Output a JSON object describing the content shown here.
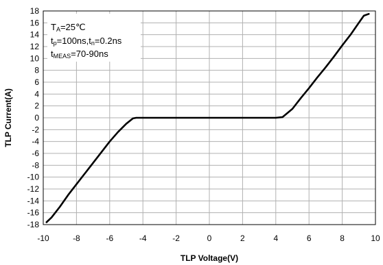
{
  "chart_data": {
    "type": "line",
    "xlabel": "TLP Voltage(V)",
    "ylabel": "TLP  Current(A)",
    "xlim": [
      -10,
      10
    ],
    "ylim": [
      -18,
      18
    ],
    "x_ticks": [
      -10,
      -8,
      -6,
      -4,
      -2,
      0,
      2,
      4,
      6,
      8,
      10
    ],
    "y_ticks": [
      18,
      16,
      14,
      12,
      10,
      8,
      6,
      4,
      2,
      0,
      -2,
      -4,
      -6,
      -8,
      -10,
      -12,
      -14,
      -16,
      -18
    ],
    "grid": true,
    "annotation": {
      "line1": {
        "main": "T",
        "sub": "A",
        "rest": "=25℃"
      },
      "line2": {
        "main1": "t",
        "sub1": "p",
        "rest1": "=100ns,t",
        "sub2": "n",
        "rest2": "=0.2ns"
      },
      "line3": {
        "main": "t",
        "sub": "MEAS",
        "rest": "=70-90ns"
      }
    },
    "series": [
      {
        "color": "#000000",
        "x": [
          -9.8,
          -9.5,
          -9.0,
          -8.5,
          -8.0,
          -7.5,
          -7.0,
          -6.5,
          -6.0,
          -5.5,
          -5.0,
          -4.6,
          -4.4,
          -4.0,
          -2.0,
          0.0,
          2.0,
          4.0,
          4.4,
          5.0,
          5.5,
          6.0,
          6.5,
          7.0,
          7.5,
          8.0,
          8.5,
          9.0,
          9.3,
          9.6
        ],
        "y": [
          -17.6,
          -16.8,
          -15.0,
          -13.0,
          -11.2,
          -9.4,
          -7.6,
          -5.8,
          -4.0,
          -2.4,
          -1.0,
          -0.1,
          0.0,
          0.0,
          0.0,
          0.0,
          0.0,
          0.0,
          0.1,
          1.5,
          3.3,
          5.0,
          6.8,
          8.5,
          10.3,
          12.2,
          14.0,
          16.0,
          17.2,
          17.5
        ]
      }
    ]
  }
}
